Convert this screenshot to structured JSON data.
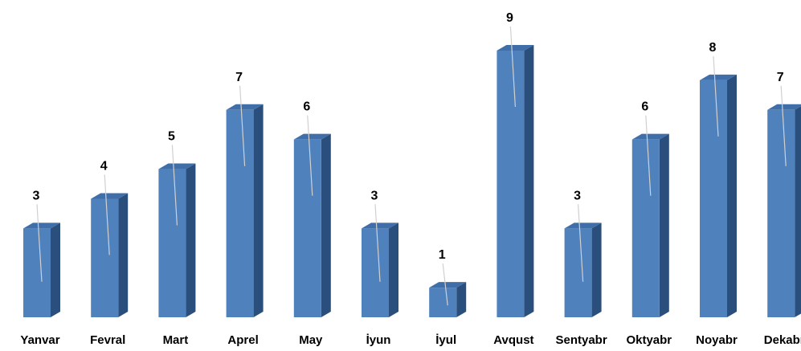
{
  "chart_data": {
    "type": "bar",
    "style": "3d-column",
    "categories": [
      "Yanvar",
      "Fevral",
      "Mart",
      "Aprel",
      "May",
      "İyun",
      "İyul",
      "Avqust",
      "Sentyabr",
      "Oktyabr",
      "Noyabr",
      "Dekabr"
    ],
    "values": [
      3,
      4,
      5,
      7,
      6,
      3,
      1,
      9,
      3,
      6,
      8,
      7
    ],
    "data_labels": [
      "3",
      "4",
      "5",
      "7",
      "6",
      "3",
      "1",
      "9",
      "3",
      "6",
      "8",
      "7"
    ],
    "ylim": [
      0,
      9
    ],
    "grid": false,
    "legend": "none",
    "colors": {
      "front": "#4f81bd",
      "top": "#3f6ea8",
      "side": "#2b4f7c",
      "leader": "#d0d0d0"
    }
  }
}
